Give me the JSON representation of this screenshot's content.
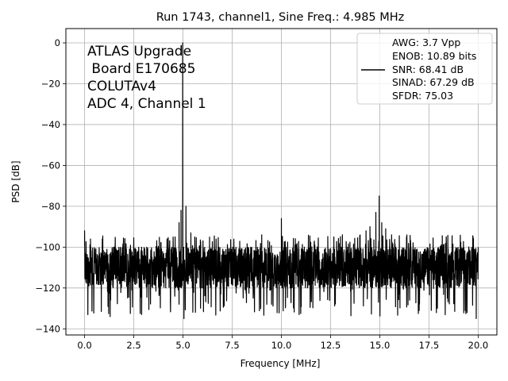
{
  "chart_data": {
    "type": "line",
    "title": "Run 1743, channel1, Sine Freq.: 4.985 MHz",
    "xlabel": "Frequency [MHz]",
    "ylabel": "PSD [dB]",
    "xlim": [
      -0.95,
      20.95
    ],
    "ylim": [
      -143,
      7
    ],
    "xticks": [
      0.0,
      2.5,
      5.0,
      7.5,
      10.0,
      12.5,
      15.0,
      17.5,
      20.0
    ],
    "xtick_labels": [
      "0.0",
      "2.5",
      "5.0",
      "7.5",
      "10.0",
      "12.5",
      "15.0",
      "17.5",
      "20.0"
    ],
    "yticks": [
      0,
      -20,
      -40,
      -60,
      -80,
      -100,
      -120,
      -140
    ],
    "ytick_labels": [
      "0",
      "−20",
      "−40",
      "−60",
      "−80",
      "−100",
      "−120",
      "−140"
    ],
    "grid": true,
    "line_color": "#000000",
    "annotation": [
      "ATLAS Upgrade",
      " Board E170685",
      "COLUTAv4",
      "ADC 4, Channel 1"
    ],
    "legend": {
      "placement": "top-right",
      "lines": [
        "AWG: 3.7 Vpp",
        "ENOB: 10.89 bits",
        "SNR: 68.41 dB",
        "SINAD: 67.29 dB",
        "SFDR: 75.03"
      ]
    },
    "series": [
      {
        "noise_floor_db": [
          -120,
          -100
        ],
        "noise_min_db": -134,
        "points": [
          {
            "x": 0.0,
            "y": -92
          },
          {
            "x": 0.3,
            "y": -96
          },
          {
            "x": 1.3,
            "y": -134
          },
          {
            "x": 2.9,
            "y": -133
          },
          {
            "x": 4.6,
            "y": -95
          },
          {
            "x": 4.8,
            "y": -88
          },
          {
            "x": 4.9,
            "y": -82
          },
          {
            "x": 4.985,
            "y": 0
          },
          {
            "x": 5.05,
            "y": -135
          },
          {
            "x": 5.15,
            "y": -80
          },
          {
            "x": 5.4,
            "y": -93
          },
          {
            "x": 5.6,
            "y": -95
          },
          {
            "x": 9.0,
            "y": -94
          },
          {
            "x": 9.5,
            "y": -128
          },
          {
            "x": 10.0,
            "y": -86
          },
          {
            "x": 13.1,
            "y": -94
          },
          {
            "x": 14.3,
            "y": -92
          },
          {
            "x": 14.5,
            "y": -90
          },
          {
            "x": 14.8,
            "y": -83
          },
          {
            "x": 14.97,
            "y": -75
          },
          {
            "x": 15.1,
            "y": -88
          },
          {
            "x": 15.3,
            "y": -91
          },
          {
            "x": 15.6,
            "y": -94
          },
          {
            "x": 17.0,
            "y": -131
          },
          {
            "x": 19.9,
            "y": -135
          },
          {
            "x": 20.0,
            "y": -100
          }
        ]
      }
    ]
  }
}
